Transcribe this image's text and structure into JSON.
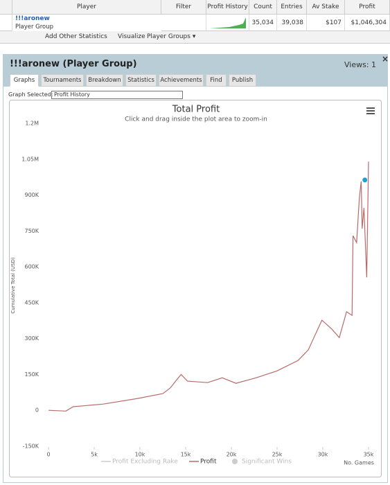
{
  "table": {
    "columns": [
      "Player",
      "Filter",
      "Profit History",
      "Count",
      "Entries",
      "Av Stake",
      "Profit"
    ],
    "row": {
      "player": "!!!aronew",
      "group": "Player Group",
      "count": "35,034",
      "entries": "39,038",
      "av_stake": "$107",
      "profit": "$1,046,304"
    }
  },
  "toolbar": {
    "add": "Add Other Statistics",
    "visualize": "Visualize",
    "groups": "Player Groups ▾"
  },
  "panel": {
    "title": "!!!aronew (Player Group)",
    "views": "Views: 1",
    "close": "×",
    "tabs": [
      "Graphs",
      "Tournaments",
      "Breakdown",
      "Statistics",
      "Achievements",
      "Find",
      "Publish"
    ],
    "graph_selected": "Graph Selected:",
    "selection": "Profit History"
  },
  "chart_data": {
    "type": "line",
    "title": "Total Profit",
    "subtitle": "Click and drag inside the plot area to zoom-in",
    "ylabel": "Cumulative Total (USD)",
    "xlabel": "No. Games",
    "xlim": [
      0,
      35000
    ],
    "xticks": [
      0,
      {
        "value": 5000,
        "label": "5k"
      },
      {
        "value": 10000,
        "label": "10k"
      },
      {
        "value": 15000,
        "label": "15k"
      },
      {
        "value": 20000,
        "label": "20k"
      },
      {
        "value": 25000,
        "label": "25k"
      },
      {
        "value": 30000,
        "label": "30k"
      },
      {
        "value": 35000,
        "label": "35k"
      }
    ],
    "ylim": [
      -150000,
      1200000
    ],
    "yticks": [
      {
        "value": -150000,
        "label": "-150K"
      },
      0,
      {
        "value": 150000,
        "label": "150K"
      },
      {
        "value": 300000,
        "label": "300K"
      },
      {
        "value": 450000,
        "label": "450K"
      },
      {
        "value": 600000,
        "label": "600K"
      },
      {
        "value": 750000,
        "label": "750K"
      },
      {
        "value": 900000,
        "label": "900K"
      },
      {
        "value": 1050000,
        "label": "1.05M"
      },
      {
        "value": 1200000,
        "label": "1.2M"
      }
    ],
    "x": [
      0,
      1900,
      2700,
      6000,
      9800,
      12500,
      13300,
      14500,
      15200,
      17400,
      19000,
      20500,
      22700,
      25000,
      27300,
      28400,
      29900,
      31000,
      31800,
      32600,
      33200,
      33300,
      33700,
      34000,
      34200,
      34300,
      34500,
      34800,
      35000
    ],
    "series": [
      {
        "name": "Profit Excluding Rake",
        "color": "#cccccc",
        "hidden": true
      },
      {
        "name": "Profit",
        "color": "#b86a6a",
        "values": [
          0,
          -3000,
          15000,
          26000,
          50000,
          70000,
          93000,
          150000,
          122000,
          116000,
          136000,
          113000,
          136000,
          165000,
          209000,
          252000,
          377000,
          339000,
          304000,
          412000,
          397000,
          730000,
          701000,
          890000,
          957000,
          760000,
          846000,
          556000,
          1040000
        ]
      },
      {
        "name": "Significant Wins",
        "color": "#1e9fd6",
        "hidden": true,
        "x": [
          34600
        ],
        "values": [
          963000
        ]
      }
    ]
  }
}
